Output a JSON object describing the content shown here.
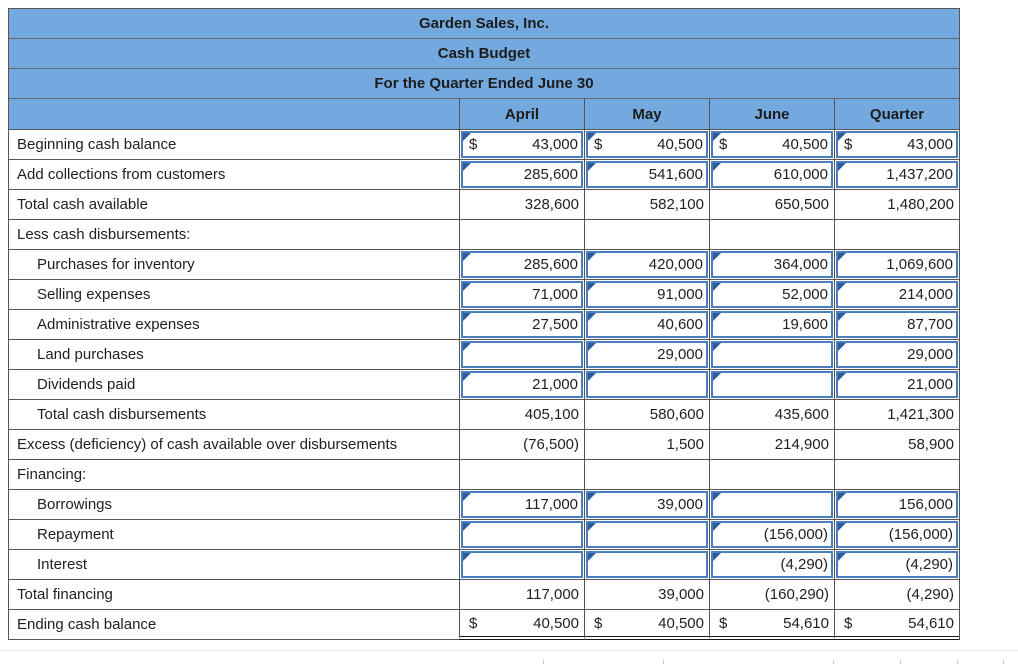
{
  "titles": {
    "company": "Garden Sales, Inc.",
    "report": "Cash Budget",
    "period": "For the Quarter Ended June 30"
  },
  "columns": [
    "April",
    "May",
    "June",
    "Quarter"
  ],
  "colors": {
    "header_bg": "#74a9df",
    "gridline": "#565656",
    "input_border": "#4a7ebc",
    "input_marker": "#2d5c9e",
    "text": "#1f1f1f"
  },
  "rows": [
    {
      "label": "Beginning cash balance",
      "indent": false,
      "cells": [
        {
          "dollar": "$",
          "value": "43,000",
          "input": true
        },
        {
          "dollar": "$",
          "value": "40,500",
          "input": true
        },
        {
          "dollar": "$",
          "value": "40,500",
          "input": true
        },
        {
          "dollar": "$",
          "value": "43,000",
          "input": true
        }
      ]
    },
    {
      "label": "Add collections from customers",
      "indent": false,
      "cells": [
        {
          "value": "285,600",
          "input": true
        },
        {
          "value": "541,600",
          "input": true
        },
        {
          "value": "610,000",
          "input": true
        },
        {
          "value": "1,437,200",
          "input": true
        }
      ]
    },
    {
      "label": "Total cash available",
      "indent": false,
      "cells": [
        {
          "value": "328,600"
        },
        {
          "value": "582,100"
        },
        {
          "value": "650,500"
        },
        {
          "value": "1,480,200"
        }
      ]
    },
    {
      "label": "Less cash disbursements:",
      "indent": false,
      "cells": [
        {
          "value": ""
        },
        {
          "value": ""
        },
        {
          "value": ""
        },
        {
          "value": ""
        }
      ]
    },
    {
      "label": "Purchases for inventory",
      "indent": true,
      "cells": [
        {
          "value": "285,600",
          "input": true
        },
        {
          "value": "420,000",
          "input": true
        },
        {
          "value": "364,000",
          "input": true
        },
        {
          "value": "1,069,600",
          "input": true
        }
      ]
    },
    {
      "label": "Selling expenses",
      "indent": true,
      "cells": [
        {
          "value": "71,000",
          "input": true
        },
        {
          "value": "91,000",
          "input": true
        },
        {
          "value": "52,000",
          "input": true
        },
        {
          "value": "214,000",
          "input": true
        }
      ]
    },
    {
      "label": "Administrative expenses",
      "indent": true,
      "cells": [
        {
          "value": "27,500",
          "input": true
        },
        {
          "value": "40,600",
          "input": true
        },
        {
          "value": "19,600",
          "input": true
        },
        {
          "value": "87,700",
          "input": true
        }
      ]
    },
    {
      "label": "Land purchases",
      "indent": true,
      "cells": [
        {
          "value": "",
          "input": true
        },
        {
          "value": "29,000",
          "input": true
        },
        {
          "value": "",
          "input": true
        },
        {
          "value": "29,000",
          "input": true
        }
      ]
    },
    {
      "label": "Dividends paid",
      "indent": true,
      "cells": [
        {
          "value": "21,000",
          "input": true
        },
        {
          "value": "",
          "input": true
        },
        {
          "value": "",
          "input": true
        },
        {
          "value": "21,000",
          "input": true
        }
      ]
    },
    {
      "label": "Total cash disbursements",
      "indent": true,
      "cells": [
        {
          "value": "405,100"
        },
        {
          "value": "580,600"
        },
        {
          "value": "435,600"
        },
        {
          "value": "1,421,300"
        }
      ]
    },
    {
      "label": "Excess (deficiency) of cash available over disbursements",
      "indent": false,
      "cells": [
        {
          "value": "(76,500)"
        },
        {
          "value": "1,500"
        },
        {
          "value": "214,900"
        },
        {
          "value": "58,900"
        }
      ]
    },
    {
      "label": "Financing:",
      "indent": false,
      "cells": [
        {
          "value": ""
        },
        {
          "value": ""
        },
        {
          "value": ""
        },
        {
          "value": ""
        }
      ]
    },
    {
      "label": "Borrowings",
      "indent": true,
      "cells": [
        {
          "value": "117,000",
          "input": true
        },
        {
          "value": "39,000",
          "input": true
        },
        {
          "value": "",
          "input": true
        },
        {
          "value": "156,000",
          "input": true
        }
      ]
    },
    {
      "label": "Repayment",
      "indent": true,
      "cells": [
        {
          "value": "",
          "input": true
        },
        {
          "value": "",
          "input": true
        },
        {
          "value": "(156,000)",
          "input": true
        },
        {
          "value": "(156,000)",
          "input": true
        }
      ]
    },
    {
      "label": "Interest",
      "indent": true,
      "cells": [
        {
          "value": "",
          "input": true
        },
        {
          "value": "",
          "input": true
        },
        {
          "value": "(4,290)",
          "input": true
        },
        {
          "value": "(4,290)",
          "input": true
        }
      ]
    },
    {
      "label": "Total financing",
      "indent": false,
      "cells": [
        {
          "value": "117,000"
        },
        {
          "value": "39,000"
        },
        {
          "value": "(160,290)"
        },
        {
          "value": "(4,290)"
        }
      ]
    },
    {
      "label": "Ending cash balance",
      "indent": false,
      "last": true,
      "cells": [
        {
          "dollar": "$",
          "value": "40,500"
        },
        {
          "dollar": "$",
          "value": "40,500"
        },
        {
          "dollar": "$",
          "value": "54,610"
        },
        {
          "dollar": "$",
          "value": "54,610"
        }
      ]
    }
  ]
}
